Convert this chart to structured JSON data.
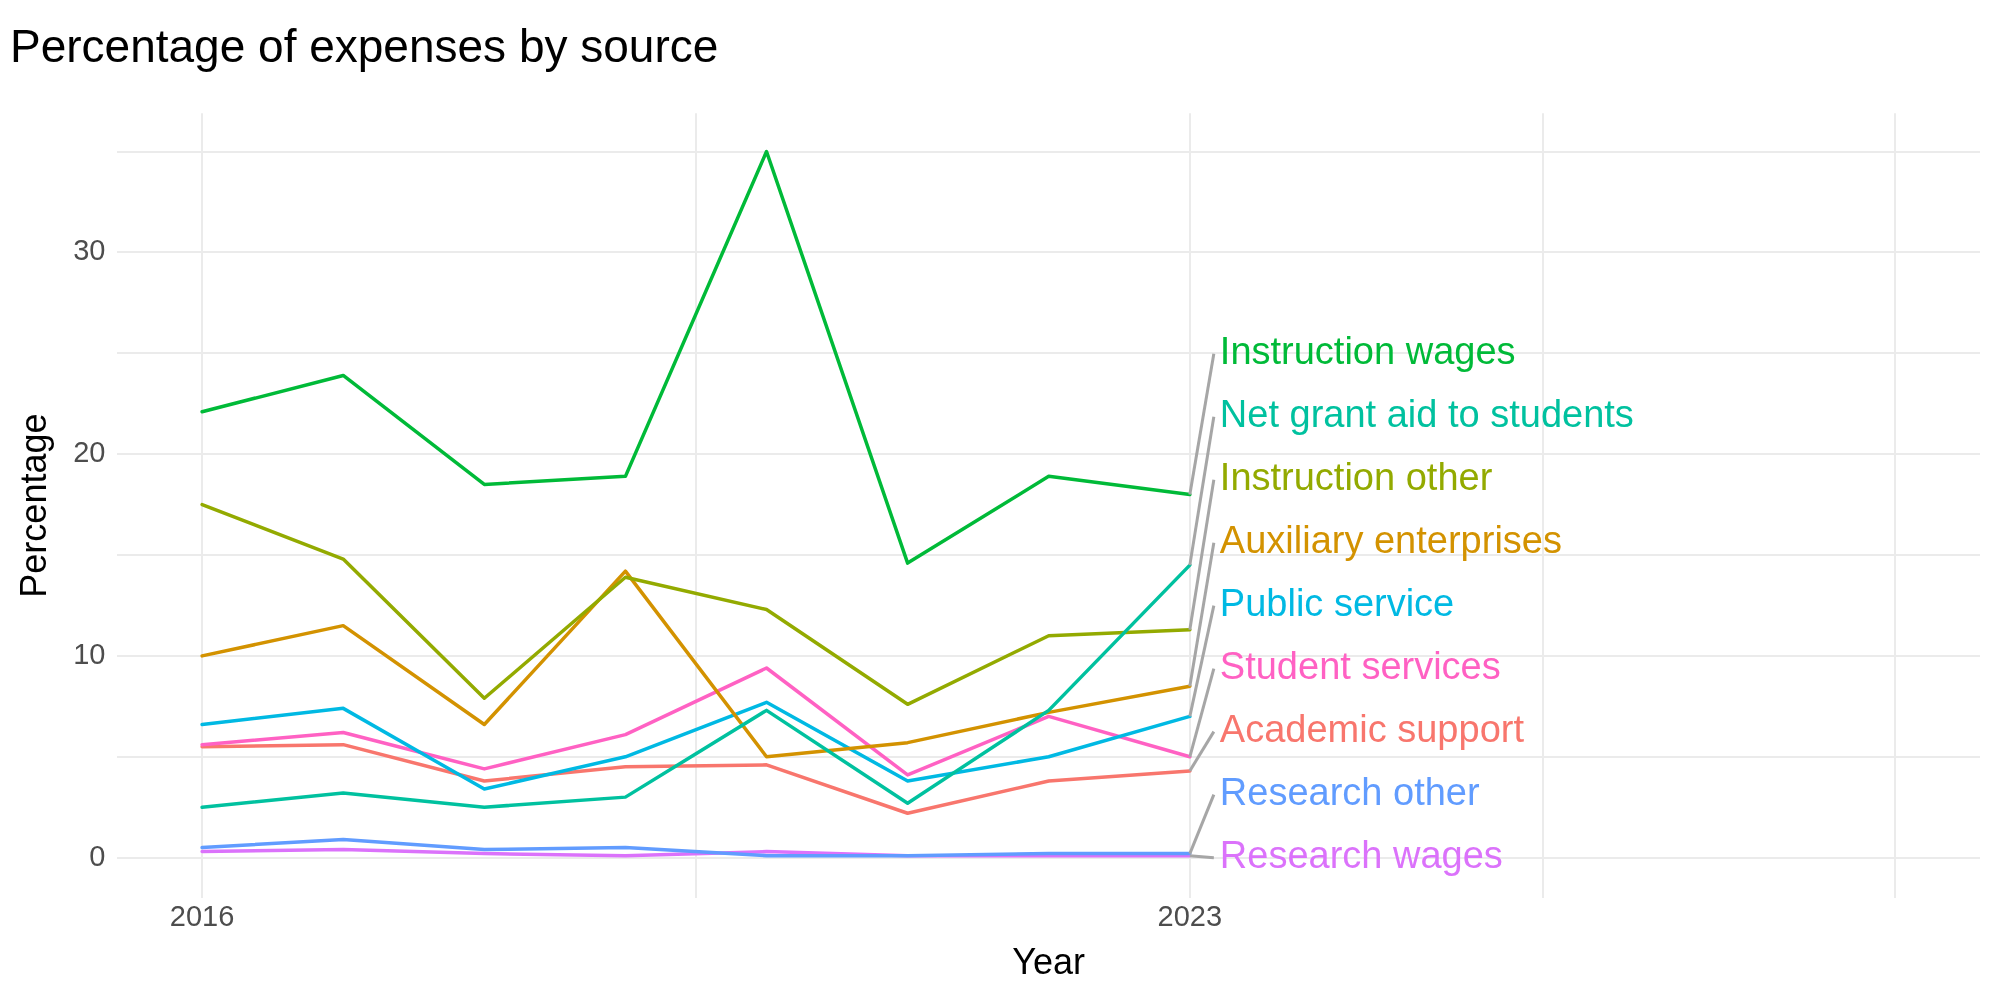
{
  "chart_data": {
    "type": "line",
    "title": "Percentage of expenses by source",
    "xlabel": "Year",
    "ylabel": "Percentage",
    "x": [
      2016,
      2017,
      2018,
      2019,
      2020,
      2021,
      2022,
      2023
    ],
    "xlim": [
      2015.4,
      2028.6
    ],
    "xticks": [
      2016,
      {
        "value": 2019.5,
        "label": null
      },
      2023,
      {
        "value": 2025.5,
        "label": null
      },
      {
        "value": 2028,
        "label": null
      }
    ],
    "ylim": [
      -2,
      36.9
    ],
    "yticks": [
      0,
      {
        "value": 5,
        "label": null
      },
      10,
      {
        "value": 15,
        "label": null
      },
      20,
      {
        "value": 25,
        "label": null
      },
      30,
      {
        "value": 35,
        "label": null
      }
    ],
    "grid": true,
    "marker": "none",
    "line_style": "solid",
    "series": [
      {
        "name": "Instruction wages",
        "color": "#00ba38",
        "values": [
          22.1,
          23.9,
          18.5,
          18.9,
          35.0,
          14.6,
          18.9,
          18.0
        ]
      },
      {
        "name": "Net grant aid to students",
        "color": "#00c19f",
        "values": [
          2.5,
          3.2,
          2.5,
          3.0,
          7.3,
          2.7,
          7.3,
          14.5
        ]
      },
      {
        "name": "Instruction other",
        "color": "#93aa00",
        "values": [
          17.5,
          14.8,
          7.9,
          13.9,
          12.3,
          7.6,
          11.0,
          11.3
        ]
      },
      {
        "name": "Auxiliary enterprises",
        "color": "#d39200",
        "values": [
          10.0,
          11.5,
          6.6,
          14.2,
          5.0,
          5.7,
          7.2,
          8.5
        ]
      },
      {
        "name": "Public service",
        "color": "#00b9e3",
        "values": [
          6.6,
          7.4,
          3.4,
          5.0,
          7.7,
          3.8,
          5.0,
          7.0
        ]
      },
      {
        "name": "Student services",
        "color": "#ff61c3",
        "values": [
          5.6,
          6.2,
          4.4,
          6.1,
          9.4,
          4.1,
          7.0,
          5.0
        ]
      },
      {
        "name": "Academic support",
        "color": "#f8766d",
        "values": [
          5.5,
          5.6,
          3.8,
          4.5,
          4.6,
          2.2,
          3.8,
          4.3
        ]
      },
      {
        "name": "Research other",
        "color": "#619cff",
        "values": [
          0.5,
          0.9,
          0.4,
          0.5,
          0.1,
          0.1,
          0.2,
          0.2
        ]
      },
      {
        "name": "Research wages",
        "color": "#db72fb",
        "values": [
          0.3,
          0.4,
          0.2,
          0.1,
          0.3,
          0.1,
          0.1,
          0.1
        ]
      }
    ]
  }
}
